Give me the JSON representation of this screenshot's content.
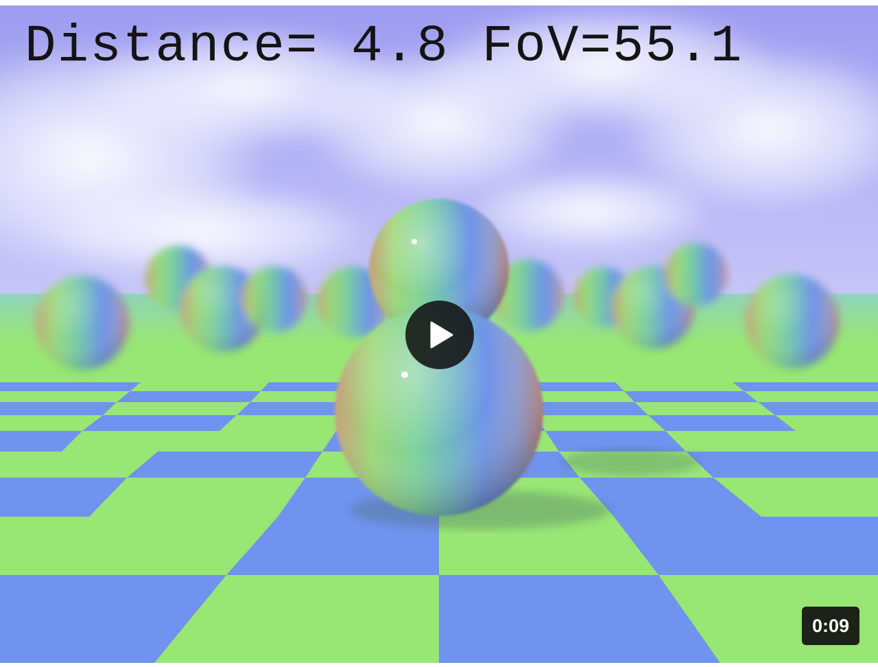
{
  "video": {
    "overlay_text": "Distance= 4.8 FoV=55.1",
    "duration": "0:09",
    "play_icon": "play-icon",
    "colors": {
      "sky": "#a9a8f2",
      "floor_blue": "#6f93ee",
      "floor_green": "#98e673",
      "control_bg": "#121212"
    }
  }
}
